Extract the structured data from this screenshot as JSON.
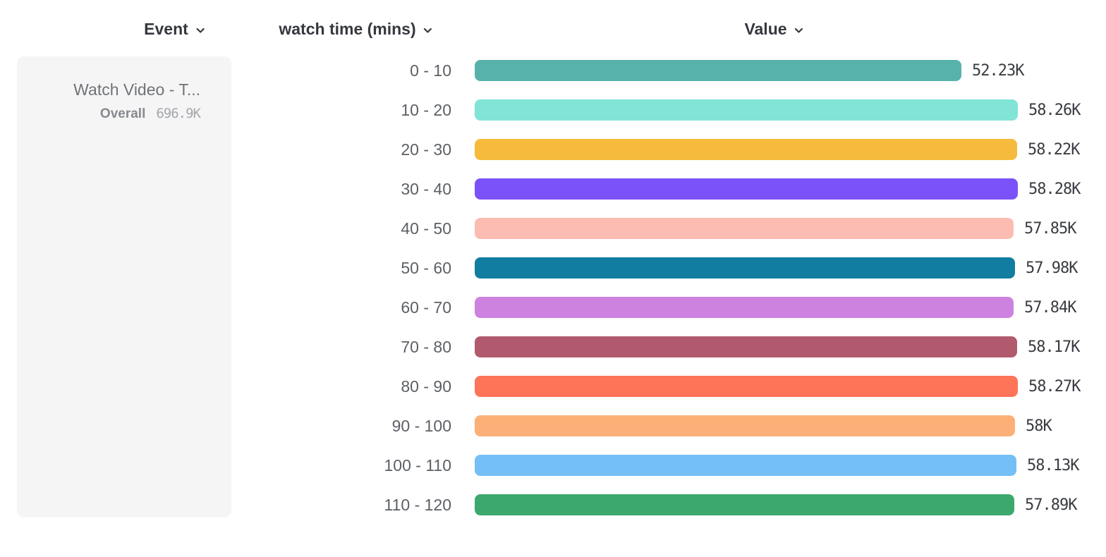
{
  "header": {
    "event_column_label": "Event",
    "breakdown_column_label": "watch time (mins)",
    "value_column_label": "Value"
  },
  "event_card": {
    "title": "Watch Video - T...",
    "overall_label": "Overall",
    "overall_value": "696.9K"
  },
  "icons": {
    "dropdown_chevron": "chevron-down"
  },
  "colors": {
    "header_text": "#35383e",
    "category_text": "#5c6065",
    "value_text": "#393c41",
    "card_background": "#f5f5f6"
  },
  "chart_data": {
    "type": "bar",
    "orientation": "horizontal",
    "breakdown_property": "watch time (mins)",
    "event_name": "Watch Video - T...",
    "overall_total": "696.9K",
    "categories": [
      "0 - 10",
      "10 - 20",
      "20 - 30",
      "30 - 40",
      "40 - 50",
      "50 - 60",
      "60 - 70",
      "70 - 80",
      "80 - 90",
      "90 - 100",
      "100 - 110",
      "110 - 120"
    ],
    "values": [
      52230,
      58260,
      58220,
      58280,
      57850,
      57980,
      57840,
      58170,
      58270,
      58000,
      58130,
      57890
    ],
    "value_labels": [
      "52.23K",
      "58.26K",
      "58.22K",
      "58.28K",
      "57.85K",
      "57.98K",
      "57.84K",
      "58.17K",
      "58.27K",
      "58K",
      "58.13K",
      "57.89K"
    ],
    "bar_colors": [
      "#57b2ab",
      "#82e3d7",
      "#f6bb3c",
      "#7b52f7",
      "#fcbcb2",
      "#117da0",
      "#cc82de",
      "#b25a6d",
      "#fd7458",
      "#fcb077",
      "#74bff5",
      "#3ca86d"
    ],
    "xlim": [
      0,
      58280
    ],
    "grid": false,
    "legend": "none"
  }
}
